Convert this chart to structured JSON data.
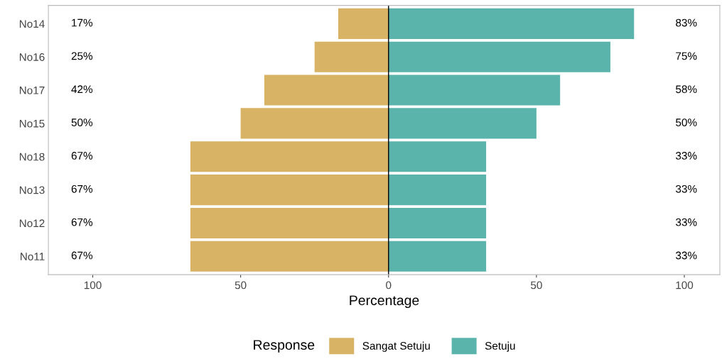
{
  "chart_data": {
    "type": "bar",
    "orientation": "horizontal",
    "categories": [
      "No14",
      "No16",
      "No17",
      "No15",
      "No18",
      "No13",
      "No12",
      "No11"
    ],
    "series": [
      {
        "name": "Sangat Setuju",
        "color": "#d8b365",
        "base": [
          -17,
          -25,
          -42,
          -50,
          -67,
          -67,
          -67,
          -67
        ],
        "values": [
          17,
          25,
          42,
          50,
          67,
          67,
          67,
          67
        ],
        "value_labels": [
          "17%",
          "25%",
          "42%",
          "50%",
          "67%",
          "67%",
          "67%",
          "67%"
        ]
      },
      {
        "name": "Setuju",
        "color": "#5ab4ac",
        "values": [
          83,
          75,
          58,
          50,
          33,
          33,
          33,
          33
        ],
        "value_labels": [
          "83%",
          "75%",
          "58%",
          "50%",
          "33%",
          "33%",
          "33%",
          "33%"
        ]
      }
    ],
    "xlabel": "Percentage",
    "legend_title": "Response",
    "legend": "bottom",
    "grid": false,
    "xlim": [
      -115,
      112
    ],
    "xticks": [
      {
        "value": -100,
        "label": "100"
      },
      {
        "value": -50,
        "label": "50"
      },
      0,
      50,
      100
    ],
    "ref_lines": [
      {
        "axis": "x",
        "value": 0,
        "color": "#000000"
      }
    ]
  }
}
